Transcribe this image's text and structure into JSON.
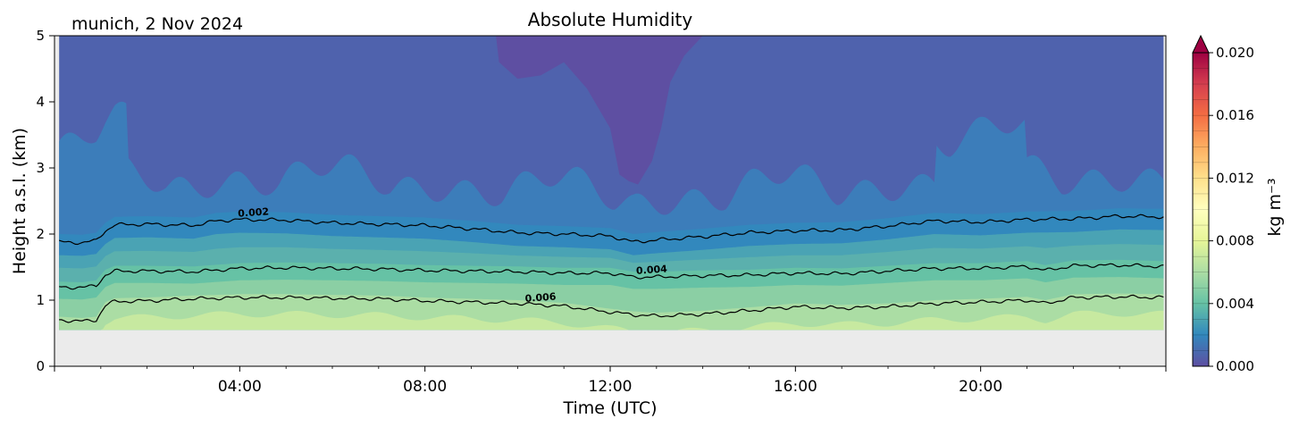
{
  "chart_data": {
    "type": "heatmap",
    "title": "Absolute Humidity",
    "location_label": "munich, 2 Nov 2024",
    "xlabel": "Time (UTC)",
    "ylabel": "Height a.s.l. (km)",
    "xlim_hours": [
      0,
      24
    ],
    "ylim_km": [
      0,
      5
    ],
    "x_ticks": [
      {
        "hour": 4,
        "label": "04:00"
      },
      {
        "hour": 8,
        "label": "08:00"
      },
      {
        "hour": 12,
        "label": "12:00"
      },
      {
        "hour": 16,
        "label": "16:00"
      },
      {
        "hour": 20,
        "label": "20:00"
      }
    ],
    "y_ticks": [
      {
        "value": 0,
        "label": "0"
      },
      {
        "value": 1,
        "label": "1"
      },
      {
        "value": 2,
        "label": "2"
      },
      {
        "value": 3,
        "label": "3"
      },
      {
        "value": 4,
        "label": "4"
      },
      {
        "value": 5,
        "label": "5"
      }
    ],
    "data_bottom_km": 0.55,
    "no_data_color": "#ebebeb",
    "colorbar": {
      "label": "kg m⁻³",
      "min": 0,
      "max": 0.02,
      "ticks": [
        {
          "value": 0.0,
          "label": "0.000"
        },
        {
          "value": 0.004,
          "label": "0.004"
        },
        {
          "value": 0.008,
          "label": "0.008"
        },
        {
          "value": 0.012,
          "label": "0.012"
        },
        {
          "value": 0.016,
          "label": "0.016"
        },
        {
          "value": 0.02,
          "label": "0.020"
        }
      ],
      "extend": "max",
      "cmap": "Spectral_r"
    },
    "fill_colors": {
      "dry_top": "#5e4fa2",
      "upper": "#4f62ad",
      "mid_upper": "#3c7dba",
      "near_002": "#3288bd",
      "band_0025": "#4aa3b4",
      "band_003": "#5bb0ad",
      "band_0035": "#66c2a5",
      "band_005": "#8bcfa4",
      "band_0065": "#abdda4",
      "moist_surface": "#c7e9a0"
    },
    "contours": [
      {
        "label": "0.002",
        "label_hour": 4.3,
        "points": [
          [
            0.1,
            1.88
          ],
          [
            0.6,
            1.87
          ],
          [
            0.9,
            1.9
          ],
          [
            1.1,
            2.05
          ],
          [
            1.3,
            2.14
          ],
          [
            2,
            2.15
          ],
          [
            3,
            2.13
          ],
          [
            3.5,
            2.2
          ],
          [
            4,
            2.22
          ],
          [
            5,
            2.21
          ],
          [
            6,
            2.17
          ],
          [
            7,
            2.15
          ],
          [
            8,
            2.13
          ],
          [
            9,
            2.08
          ],
          [
            10,
            2.02
          ],
          [
            11,
            2.0
          ],
          [
            12,
            1.97
          ],
          [
            12.5,
            1.88
          ],
          [
            13,
            1.91
          ],
          [
            14,
            1.96
          ],
          [
            15,
            2.02
          ],
          [
            16,
            2.05
          ],
          [
            17,
            2.06
          ],
          [
            18,
            2.12
          ],
          [
            19,
            2.2
          ],
          [
            20,
            2.18
          ],
          [
            21,
            2.22
          ],
          [
            22,
            2.23
          ],
          [
            23,
            2.27
          ],
          [
            23.95,
            2.26
          ]
        ]
      },
      {
        "label": "0.004",
        "label_hour": 12.9,
        "points": [
          [
            0.1,
            1.2
          ],
          [
            0.6,
            1.19
          ],
          [
            0.9,
            1.22
          ],
          [
            1.1,
            1.38
          ],
          [
            1.3,
            1.44
          ],
          [
            2,
            1.44
          ],
          [
            3,
            1.43
          ],
          [
            4,
            1.48
          ],
          [
            5,
            1.49
          ],
          [
            6,
            1.48
          ],
          [
            7,
            1.47
          ],
          [
            8,
            1.45
          ],
          [
            9,
            1.44
          ],
          [
            10,
            1.43
          ],
          [
            11,
            1.41
          ],
          [
            12,
            1.41
          ],
          [
            12.5,
            1.35
          ],
          [
            13,
            1.35
          ],
          [
            14,
            1.37
          ],
          [
            15,
            1.38
          ],
          [
            16,
            1.41
          ],
          [
            17,
            1.4
          ],
          [
            18,
            1.44
          ],
          [
            19,
            1.48
          ],
          [
            20,
            1.48
          ],
          [
            21,
            1.51
          ],
          [
            21.4,
            1.45
          ],
          [
            22,
            1.52
          ],
          [
            23,
            1.53
          ],
          [
            23.95,
            1.51
          ]
        ]
      },
      {
        "label": "0.006",
        "label_hour": 10.5,
        "points": [
          [
            0.1,
            0.7
          ],
          [
            0.6,
            0.68
          ],
          [
            0.9,
            0.7
          ],
          [
            1.1,
            0.92
          ],
          [
            1.3,
            0.98
          ],
          [
            2,
            0.99
          ],
          [
            3,
            1.02
          ],
          [
            4,
            1.04
          ],
          [
            5,
            1.04
          ],
          [
            6,
            1.03
          ],
          [
            7,
            1.02
          ],
          [
            8,
            0.99
          ],
          [
            9,
            0.97
          ],
          [
            10,
            0.95
          ],
          [
            11,
            0.91
          ],
          [
            12,
            0.82
          ],
          [
            12.5,
            0.78
          ],
          [
            13,
            0.76
          ],
          [
            14,
            0.79
          ],
          [
            15,
            0.84
          ],
          [
            16,
            0.9
          ],
          [
            17,
            0.88
          ],
          [
            18,
            0.9
          ],
          [
            19,
            0.95
          ],
          [
            20,
            0.97
          ],
          [
            21,
            1.0
          ],
          [
            21.4,
            0.95
          ],
          [
            22,
            1.04
          ],
          [
            23,
            1.05
          ],
          [
            23.95,
            1.04
          ]
        ]
      }
    ]
  }
}
